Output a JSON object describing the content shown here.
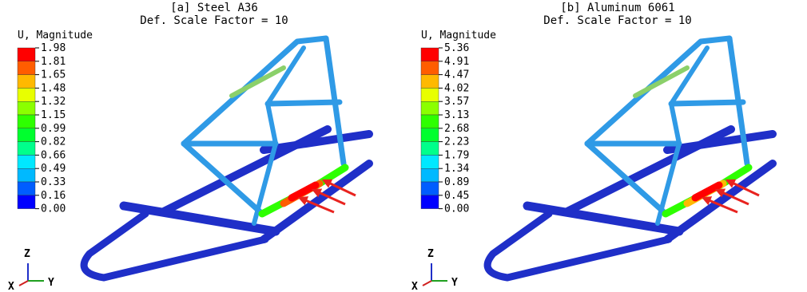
{
  "panels": [
    {
      "title": "[a] Steel A36",
      "subtitle": "Def. Scale Factor = 10",
      "legend_title": "U, Magnitude",
      "legend_values": [
        "1.98",
        "1.81",
        "1.65",
        "1.48",
        "1.32",
        "1.15",
        "0.99",
        "0.82",
        "0.66",
        "0.49",
        "0.33",
        "0.16",
        "0.00"
      ],
      "triad": {
        "z": "Z",
        "x": "X",
        "y": "Y"
      }
    },
    {
      "title": "[b] Aluminum 6061",
      "subtitle": "Def. Scale Factor = 10",
      "legend_title": "U, Magnitude",
      "legend_values": [
        "5.36",
        "4.91",
        "4.47",
        "4.02",
        "3.57",
        "3.13",
        "2.68",
        "2.23",
        "1.79",
        "1.34",
        "0.89",
        "0.45",
        "0.00"
      ],
      "triad": {
        "z": "Z",
        "x": "X",
        "y": "Y"
      }
    }
  ]
}
